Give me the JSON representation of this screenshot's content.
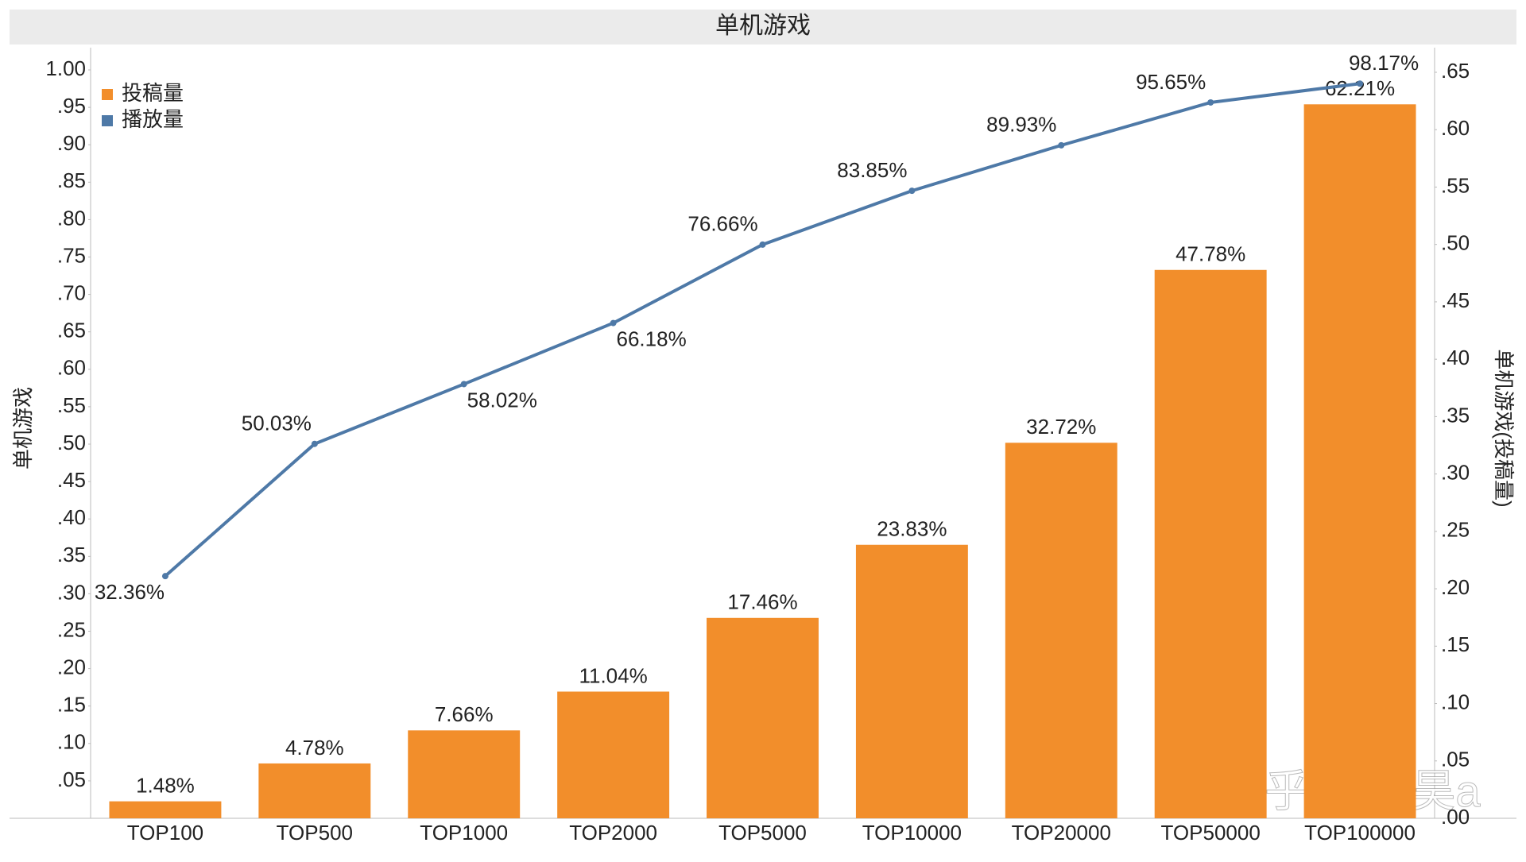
{
  "chart_data": {
    "type": "bar-line",
    "title": "单机游戏",
    "categories": [
      "TOP100",
      "TOP500",
      "TOP1000",
      "TOP2000",
      "TOP5000",
      "TOP10000",
      "TOP20000",
      "TOP50000",
      "TOP100000"
    ],
    "series": [
      {
        "name": "投稿量",
        "type": "bar",
        "axis": "y2",
        "color": "#f28e2b",
        "values": [
          0.0148,
          0.0478,
          0.0766,
          0.1104,
          0.1746,
          0.2383,
          0.3272,
          0.4778,
          0.6221
        ],
        "value_labels": [
          "1.48%",
          "4.78%",
          "7.66%",
          "11.04%",
          "17.46%",
          "23.83%",
          "32.72%",
          "47.78%",
          "62.21%"
        ]
      },
      {
        "name": "播放量",
        "type": "line",
        "color": "#4e79a7",
        "values": [
          0.3236,
          0.5003,
          0.5802,
          0.6618,
          0.7666,
          0.8385,
          0.8993,
          0.9565,
          0.9817
        ],
        "value_labels": [
          "32.36%",
          "50.03%",
          "58.02%",
          "66.18%",
          "76.66%",
          "83.85%",
          "89.93%",
          "95.65%",
          "98.17%"
        ]
      }
    ],
    "y_label": "单机游戏",
    "y2_label": "单机游戏(投稿量)",
    "ylim": [
      0,
      1.0
    ],
    "yticks": [
      {
        "value": 0.05,
        "label": ".05"
      },
      {
        "value": 0.1,
        "label": ".10"
      },
      {
        "value": 0.15,
        "label": ".15"
      },
      {
        "value": 0.2,
        "label": ".20"
      },
      {
        "value": 0.25,
        "label": ".25"
      },
      {
        "value": 0.3,
        "label": ".30"
      },
      {
        "value": 0.35,
        "label": ".35"
      },
      {
        "value": 0.4,
        "label": ".40"
      },
      {
        "value": 0.45,
        "label": ".45"
      },
      {
        "value": 0.5,
        "label": ".50"
      },
      {
        "value": 0.55,
        "label": ".55"
      },
      {
        "value": 0.6,
        "label": ".60"
      },
      {
        "value": 0.65,
        "label": ".65"
      },
      {
        "value": 0.7,
        "label": ".70"
      },
      {
        "value": 0.75,
        "label": ".75"
      },
      {
        "value": 0.8,
        "label": ".80"
      },
      {
        "value": 0.85,
        "label": ".85"
      },
      {
        "value": 0.9,
        "label": ".90"
      },
      {
        "value": 0.95,
        "label": ".95"
      },
      {
        "value": 1.0,
        "label": "1.00"
      }
    ],
    "y2lim": [
      0,
      0.65
    ],
    "y2ticks": [
      {
        "value": 0,
        "label": ".00"
      },
      {
        "value": 0.05,
        "label": ".05"
      },
      {
        "value": 0.1,
        "label": ".10"
      },
      {
        "value": 0.15,
        "label": ".15"
      },
      {
        "value": 0.2,
        "label": ".20"
      },
      {
        "value": 0.25,
        "label": ".25"
      },
      {
        "value": 0.3,
        "label": ".30"
      },
      {
        "value": 0.35,
        "label": ".35"
      },
      {
        "value": 0.4,
        "label": ".40"
      },
      {
        "value": 0.45,
        "label": ".45"
      },
      {
        "value": 0.5,
        "label": ".50"
      },
      {
        "value": 0.55,
        "label": ".55"
      },
      {
        "value": 0.6,
        "label": ".60"
      },
      {
        "value": 0.65,
        "label": ".65"
      }
    ],
    "legend": "top-left",
    "watermark": "知乎 @刘昊a"
  }
}
